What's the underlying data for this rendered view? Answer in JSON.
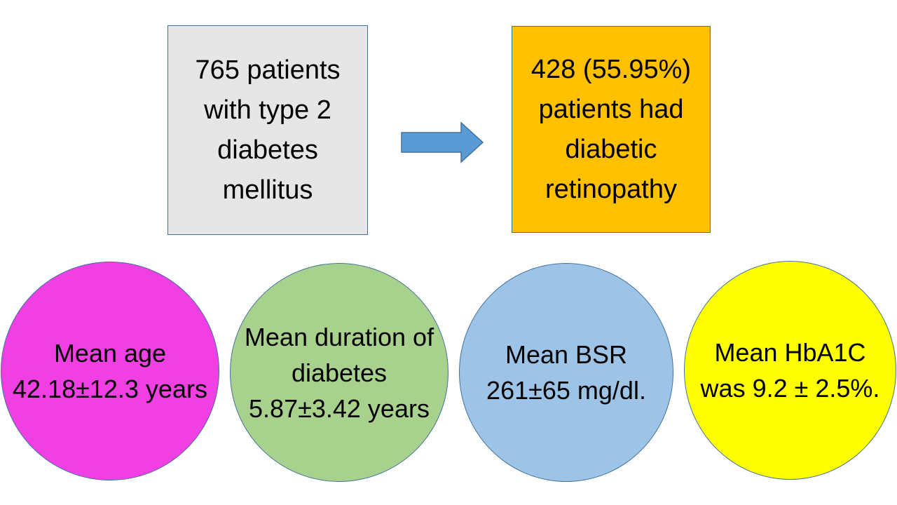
{
  "boxes": {
    "start": {
      "label": "765 patients with type 2 diabetes mellitus",
      "fill": "#e7e6e6"
    },
    "result": {
      "label": "428 (55.95%) patients had diabetic retinopathy",
      "fill": "#ffc000"
    }
  },
  "arrow": {
    "fill": "#5b9bd5",
    "icon": "right-arrow-icon"
  },
  "circles": [
    {
      "label": "Mean age 42.18±12.3 years",
      "fill": "#f03fe2"
    },
    {
      "label": "Mean duration of diabetes 5.87±3.42 years",
      "fill": "#a9d18e"
    },
    {
      "label": "Mean BSR 261±65 mg/dl.",
      "fill": "#9dc3e6"
    },
    {
      "label": "Mean HbA1C was 9.2 ± 2.5%.",
      "fill": "#ffff00"
    }
  ]
}
